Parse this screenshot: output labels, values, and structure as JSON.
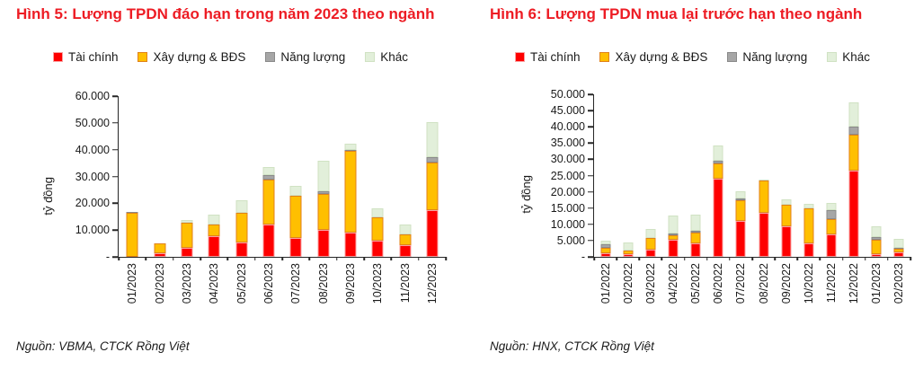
{
  "page": {
    "background": "#ffffff",
    "title_color": "#ed1c24",
    "text_color": "#1a1a1a",
    "axis_color": "#262626"
  },
  "chart_data": [
    {
      "type": "bar",
      "stacked": true,
      "title": "Hình 5: Lượng TPDN đáo hạn trong năm 2023 theo ngành",
      "source": "Nguồn: VBMA, CTCK Rồng Việt",
      "ylabel": "tỷ đồng",
      "unit": "tỷ đồng",
      "ylim": [
        0,
        60000
      ],
      "ytick_labels": [
        "60.000",
        "50.000",
        "40.000",
        "30.000",
        "20.000",
        "10.000",
        "-"
      ],
      "grid": false,
      "legend_position": "top",
      "categories": [
        "01/2023",
        "02/2023",
        "03/2023",
        "04/2023",
        "05/2023",
        "06/2023",
        "07/2023",
        "08/2023",
        "09/2023",
        "10/2023",
        "11/2023",
        "12/2023"
      ],
      "series": [
        {
          "name": "Tài chính",
          "color": "#fe0000",
          "border": "#f9a1a1",
          "values": [
            0,
            1500,
            3200,
            7700,
            5500,
            12000,
            7200,
            10000,
            9200,
            6100,
            4500,
            17500
          ]
        },
        {
          "name": "Xây dựng & BĐS",
          "color": "#ffbf00",
          "border": "#e0821a",
          "values": [
            16500,
            3700,
            9400,
            4500,
            10800,
            17000,
            15600,
            13500,
            30400,
            8500,
            3800,
            17700
          ]
        },
        {
          "name": "Năng lượng",
          "color": "#a6a6a6",
          "border": "#8a8a8a",
          "values": [
            300,
            0,
            0,
            0,
            0,
            1500,
            0,
            1000,
            400,
            0,
            0,
            2000
          ]
        },
        {
          "name": "Khác",
          "color": "#e2efda",
          "border": "#d0e2c3",
          "values": [
            0,
            0,
            1000,
            3400,
            4700,
            3000,
            3700,
            11500,
            2200,
            3400,
            3800,
            13000
          ]
        }
      ]
    },
    {
      "type": "bar",
      "stacked": true,
      "title": "Hình 6: Lượng TPDN mua lại trước hạn theo ngành",
      "source": "Nguồn: HNX, CTCK Rồng Việt",
      "ylabel": "tỷ đồng",
      "unit": "tỷ đồng",
      "ylim": [
        0,
        50000
      ],
      "ytick_labels": [
        "50.000",
        "45.000",
        "40.000",
        "35.000",
        "30.000",
        "25.000",
        "20.000",
        "15.000",
        "10.000",
        "5.000",
        "-"
      ],
      "grid": false,
      "legend_position": "top",
      "categories": [
        "01/2022",
        "02/2022",
        "03/2022",
        "04/2022",
        "05/2022",
        "06/2022",
        "07/2022",
        "08/2022",
        "09/2022",
        "10/2022",
        "11/2022",
        "12/2022",
        "01/2023",
        "02/2023"
      ],
      "series": [
        {
          "name": "Tài chính",
          "color": "#fe0000",
          "border": "#f9a1a1",
          "values": [
            1000,
            900,
            2300,
            5300,
            4200,
            24000,
            11000,
            13500,
            9300,
            4200,
            7000,
            26500,
            800,
            1300
          ]
        },
        {
          "name": "Xây dựng & BĐS",
          "color": "#ffbf00",
          "border": "#e0821a",
          "values": [
            1800,
            1000,
            3500,
            1400,
            3200,
            4700,
            6500,
            10000,
            6800,
            10700,
            4700,
            11000,
            4500,
            1200
          ]
        },
        {
          "name": "Năng lượng",
          "color": "#a6a6a6",
          "border": "#8a8a8a",
          "values": [
            1000,
            0,
            0,
            400,
            500,
            800,
            500,
            0,
            0,
            0,
            2600,
            2700,
            800,
            400
          ]
        },
        {
          "name": "Khác",
          "color": "#e2efda",
          "border": "#d0e2c3",
          "values": [
            1200,
            2500,
            2800,
            5500,
            5100,
            4800,
            2200,
            300,
            1700,
            1300,
            2300,
            7300,
            3300,
            2700
          ]
        }
      ]
    }
  ]
}
